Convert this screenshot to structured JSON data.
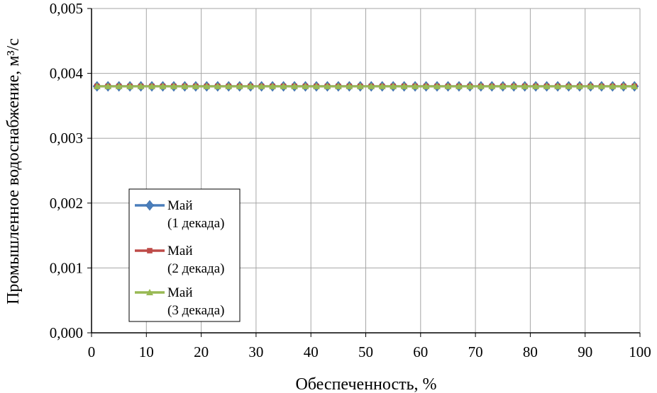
{
  "chart_data": {
    "type": "line",
    "title": "",
    "xlabel": "Обеспеченность, %",
    "ylabel": "Промышленное водоснабжение, м³/с",
    "xlim": [
      0,
      100
    ],
    "ylim": [
      0,
      0.005
    ],
    "x_ticks": [
      "0",
      "10",
      "20",
      "30",
      "40",
      "50",
      "60",
      "70",
      "80",
      "90",
      "100"
    ],
    "y_ticks": [
      "0,000",
      "0,001",
      "0,002",
      "0,003",
      "0,004",
      "0,005"
    ],
    "grid": true,
    "legend_position": "left",
    "x": [
      1,
      3,
      5,
      7,
      9,
      11,
      13,
      15,
      17,
      19,
      21,
      23,
      25,
      27,
      29,
      31,
      33,
      35,
      37,
      39,
      41,
      43,
      45,
      47,
      49,
      51,
      53,
      55,
      57,
      59,
      61,
      63,
      65,
      67,
      69,
      71,
      73,
      75,
      77,
      79,
      81,
      83,
      85,
      87,
      89,
      91,
      93,
      95,
      97,
      99
    ],
    "series": [
      {
        "name": "Май (1 декада)",
        "color": "#4a7ebb",
        "marker": "diamond",
        "values": [
          0.0038,
          0.0038,
          0.0038,
          0.0038,
          0.0038,
          0.0038,
          0.0038,
          0.0038,
          0.0038,
          0.0038,
          0.0038,
          0.0038,
          0.0038,
          0.0038,
          0.0038,
          0.0038,
          0.0038,
          0.0038,
          0.0038,
          0.0038,
          0.0038,
          0.0038,
          0.0038,
          0.0038,
          0.0038,
          0.0038,
          0.0038,
          0.0038,
          0.0038,
          0.0038,
          0.0038,
          0.0038,
          0.0038,
          0.0038,
          0.0038,
          0.0038,
          0.0038,
          0.0038,
          0.0038,
          0.0038,
          0.0038,
          0.0038,
          0.0038,
          0.0038,
          0.0038,
          0.0038,
          0.0038,
          0.0038,
          0.0038,
          0.0038
        ]
      },
      {
        "name": "Май (2 декада)",
        "color": "#be4b48",
        "marker": "square",
        "values": [
          0.0038,
          0.0038,
          0.0038,
          0.0038,
          0.0038,
          0.0038,
          0.0038,
          0.0038,
          0.0038,
          0.0038,
          0.0038,
          0.0038,
          0.0038,
          0.0038,
          0.0038,
          0.0038,
          0.0038,
          0.0038,
          0.0038,
          0.0038,
          0.0038,
          0.0038,
          0.0038,
          0.0038,
          0.0038,
          0.0038,
          0.0038,
          0.0038,
          0.0038,
          0.0038,
          0.0038,
          0.0038,
          0.0038,
          0.0038,
          0.0038,
          0.0038,
          0.0038,
          0.0038,
          0.0038,
          0.0038,
          0.0038,
          0.0038,
          0.0038,
          0.0038,
          0.0038,
          0.0038,
          0.0038,
          0.0038,
          0.0038,
          0.0038
        ]
      },
      {
        "name": "Май (3 декада)",
        "color": "#98b954",
        "marker": "triangle",
        "values": [
          0.0038,
          0.0038,
          0.0038,
          0.0038,
          0.0038,
          0.0038,
          0.0038,
          0.0038,
          0.0038,
          0.0038,
          0.0038,
          0.0038,
          0.0038,
          0.0038,
          0.0038,
          0.0038,
          0.0038,
          0.0038,
          0.0038,
          0.0038,
          0.0038,
          0.0038,
          0.0038,
          0.0038,
          0.0038,
          0.0038,
          0.0038,
          0.0038,
          0.0038,
          0.0038,
          0.0038,
          0.0038,
          0.0038,
          0.0038,
          0.0038,
          0.0038,
          0.0038,
          0.0038,
          0.0038,
          0.0038,
          0.0038,
          0.0038,
          0.0038,
          0.0038,
          0.0038,
          0.0038,
          0.0038,
          0.0038,
          0.0038,
          0.0038
        ]
      }
    ],
    "legend": {
      "items": [
        {
          "line1": "Май",
          "line2": "(1 декада)"
        },
        {
          "line1": "Май",
          "line2": "(2 декада)"
        },
        {
          "line1": "Май",
          "line2": "(3 декада)"
        }
      ]
    }
  }
}
